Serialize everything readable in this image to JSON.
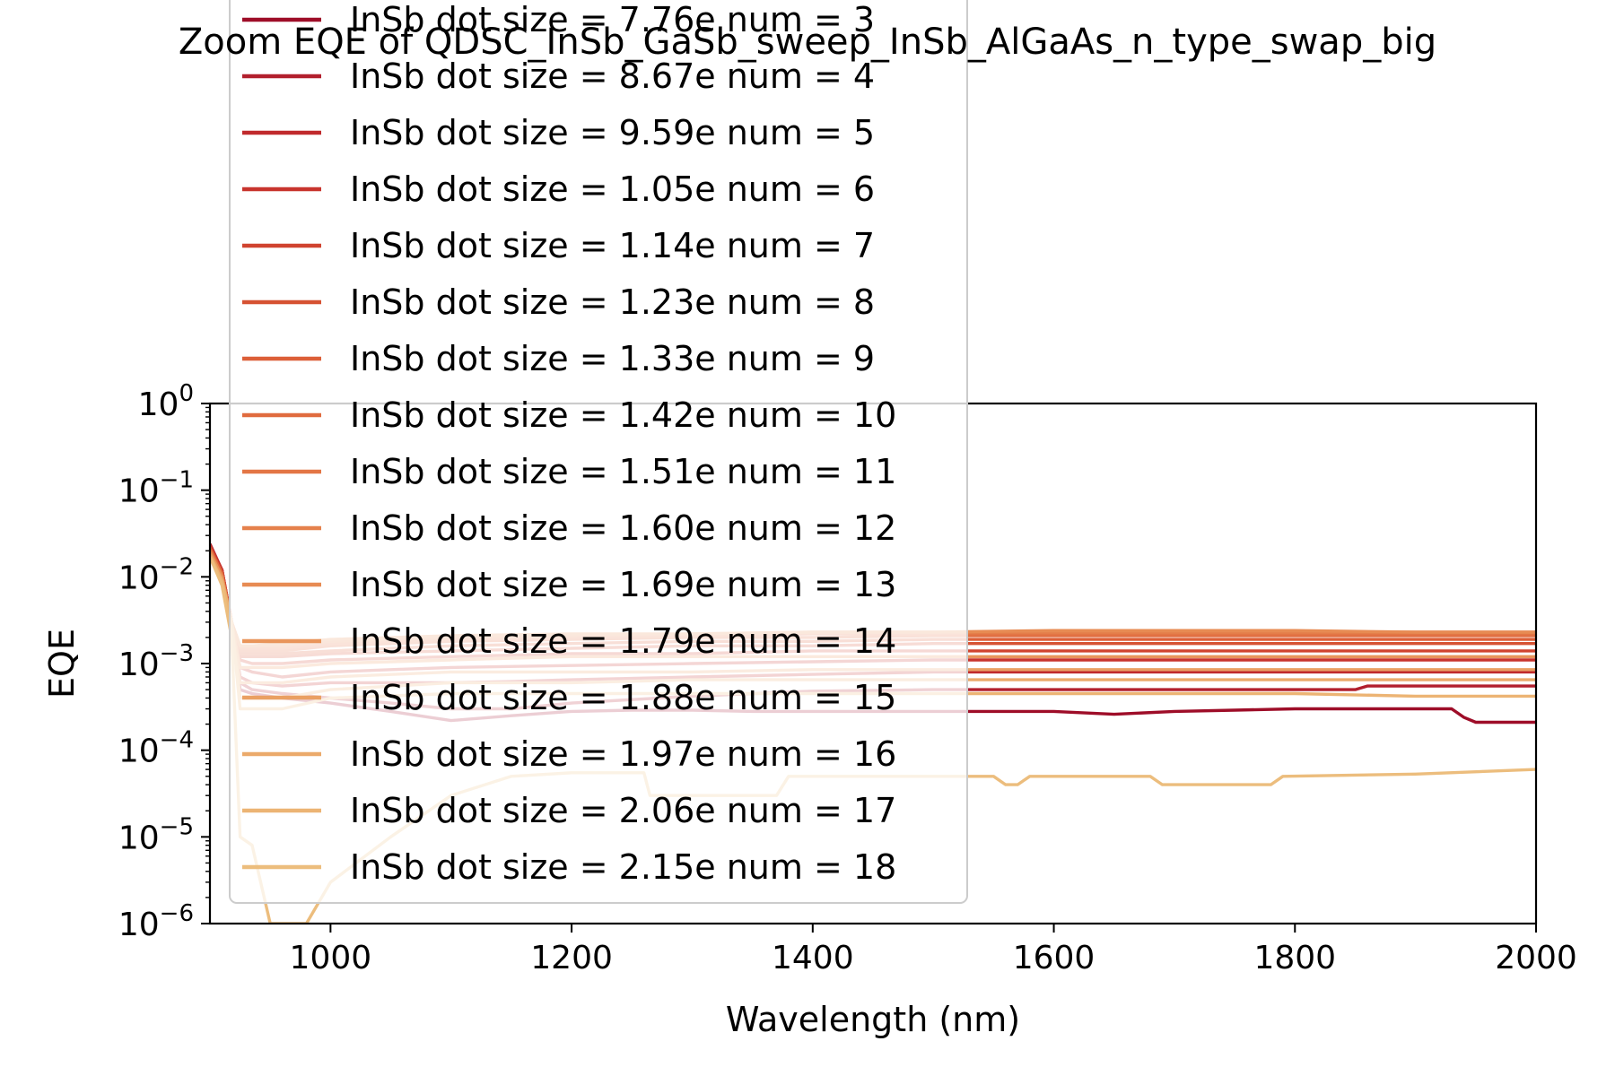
{
  "chart_data": {
    "type": "line",
    "title": "Zoom EQE of QDSC_InSb_GaSb_sweep_InSb_AlGaAs_n_type_swap_big",
    "xlabel": "Wavelength (nm)",
    "ylabel": "EQE",
    "xlim": [
      900,
      2000
    ],
    "ylim": [
      1e-06,
      1
    ],
    "yscale": "log",
    "legend_position": "upper-left",
    "x_ticks": [
      {
        "value": 1000,
        "label": "1000"
      },
      {
        "value": 1200,
        "label": "1200"
      },
      {
        "value": 1400,
        "label": "1400"
      },
      {
        "value": 1600,
        "label": "1600"
      },
      {
        "value": 1800,
        "label": "1800"
      },
      {
        "value": 2000,
        "label": "2000"
      }
    ],
    "y_ticks": [
      {
        "value": 1,
        "base": "10",
        "exp": "0"
      },
      {
        "value": 0.1,
        "base": "10",
        "exp": "−1"
      },
      {
        "value": 0.01,
        "base": "10",
        "exp": "−2"
      },
      {
        "value": 0.001,
        "base": "10",
        "exp": "−3"
      },
      {
        "value": 0.0001,
        "base": "10",
        "exp": "−4"
      },
      {
        "value": 1e-05,
        "base": "10",
        "exp": "−5"
      },
      {
        "value": 1e-06,
        "base": "10",
        "exp": "−6"
      }
    ],
    "series": [
      {
        "name": "InSb dot size = 7.76e num = 3",
        "color": "#9e0d28",
        "x": [
          900,
          910,
          918,
          925,
          935,
          960,
          1000,
          1050,
          1100,
          1150,
          1200,
          1250,
          1300,
          1350,
          1400,
          1450,
          1500,
          1550,
          1600,
          1650,
          1700,
          1750,
          1800,
          1850,
          1900,
          1930,
          1940,
          1950,
          1960,
          2000
        ],
        "y": [
          0.022,
          0.012,
          0.003,
          0.0005,
          0.00045,
          0.0004,
          0.00035,
          0.00028,
          0.00022,
          0.00025,
          0.00028,
          0.00029,
          0.00029,
          0.00028,
          0.00028,
          0.00028,
          0.00028,
          0.00028,
          0.00028,
          0.00026,
          0.00028,
          0.00029,
          0.0003,
          0.0003,
          0.0003,
          0.0003,
          0.00024,
          0.00021,
          0.00021,
          0.00021
        ]
      },
      {
        "name": "InSb dot size = 8.67e num = 4",
        "color": "#b21f2d",
        "x": [
          900,
          910,
          918,
          925,
          935,
          960,
          1000,
          1050,
          1100,
          1150,
          1200,
          1300,
          1400,
          1500,
          1600,
          1700,
          1800,
          1850,
          1860,
          1950,
          2000
        ],
        "y": [
          0.024,
          0.012,
          0.003,
          0.0006,
          0.0005,
          0.00045,
          0.0004,
          0.00035,
          0.0003,
          0.0003,
          0.00035,
          0.00042,
          0.00048,
          0.0005,
          0.0005,
          0.0005,
          0.0005,
          0.0005,
          0.00055,
          0.00055,
          0.00055
        ]
      },
      {
        "name": "InSb dot size = 9.59e num = 5",
        "color": "#c02a2c",
        "x": [
          900,
          910,
          918,
          925,
          935,
          960,
          1000,
          1050,
          1100,
          1150,
          1200,
          1300,
          1400,
          1500,
          1600,
          1700,
          1800,
          1900,
          2000
        ],
        "y": [
          0.023,
          0.012,
          0.003,
          0.0007,
          0.0006,
          0.00055,
          0.0006,
          0.0006,
          0.0006,
          0.00062,
          0.00065,
          0.0007,
          0.00075,
          0.0008,
          0.0008,
          0.0008,
          0.0008,
          0.0008,
          0.0008
        ]
      },
      {
        "name": "InSb dot size = 1.05e num = 6",
        "color": "#c8342d",
        "x": [
          900,
          910,
          918,
          925,
          935,
          960,
          1000,
          1050,
          1100,
          1200,
          1300,
          1400,
          1500,
          1600,
          1700,
          1800,
          1900,
          2000
        ],
        "y": [
          0.023,
          0.012,
          0.003,
          0.0009,
          0.0008,
          0.0007,
          0.0008,
          0.00085,
          0.0009,
          0.00095,
          0.001,
          0.00105,
          0.0011,
          0.0011,
          0.0011,
          0.0011,
          0.0011,
          0.0011
        ]
      },
      {
        "name": "InSb dot size = 1.14e num = 7",
        "color": "#d0432f",
        "x": [
          900,
          910,
          918,
          925,
          935,
          960,
          1000,
          1100,
          1200,
          1300,
          1400,
          1500,
          1600,
          1700,
          1800,
          1900,
          2000
        ],
        "y": [
          0.022,
          0.011,
          0.003,
          0.0011,
          0.001,
          0.001,
          0.0011,
          0.0012,
          0.0013,
          0.0013,
          0.0014,
          0.0014,
          0.0014,
          0.0014,
          0.0014,
          0.0014,
          0.0014
        ]
      },
      {
        "name": "InSb dot size = 1.23e num = 8",
        "color": "#d65233",
        "x": [
          900,
          910,
          918,
          925,
          935,
          960,
          1000,
          1100,
          1200,
          1300,
          1400,
          1500,
          1600,
          1700,
          1800,
          1900,
          2000
        ],
        "y": [
          0.022,
          0.011,
          0.003,
          0.0012,
          0.0012,
          0.0012,
          0.0013,
          0.0014,
          0.0015,
          0.0016,
          0.0016,
          0.0017,
          0.0017,
          0.0017,
          0.0017,
          0.0017,
          0.0017
        ]
      },
      {
        "name": "InSb dot size = 1.33e num = 9",
        "color": "#dc5f38",
        "x": [
          900,
          910,
          918,
          925,
          935,
          960,
          1000,
          1100,
          1200,
          1300,
          1400,
          1500,
          1600,
          1700,
          1800,
          1900,
          2000
        ],
        "y": [
          0.021,
          0.011,
          0.003,
          0.0013,
          0.0013,
          0.0013,
          0.0014,
          0.0016,
          0.0017,
          0.0018,
          0.0018,
          0.0019,
          0.0019,
          0.0019,
          0.0019,
          0.0019,
          0.0019
        ]
      },
      {
        "name": "InSb dot size = 1.42e num = 10",
        "color": "#e06b3e",
        "x": [
          900,
          910,
          918,
          925,
          935,
          960,
          1000,
          1100,
          1200,
          1300,
          1400,
          1500,
          1600,
          1700,
          1800,
          1900,
          2000
        ],
        "y": [
          0.021,
          0.011,
          0.003,
          0.0014,
          0.0014,
          0.0014,
          0.0016,
          0.0018,
          0.0019,
          0.002,
          0.002,
          0.0021,
          0.0021,
          0.0021,
          0.0021,
          0.0021,
          0.0021
        ]
      },
      {
        "name": "InSb dot size = 1.51e num = 11",
        "color": "#e37645",
        "x": [
          900,
          910,
          918,
          925,
          935,
          960,
          1000,
          1100,
          1200,
          1300,
          1400,
          1500,
          1600,
          1700,
          1800,
          1900,
          2000
        ],
        "y": [
          0.02,
          0.01,
          0.003,
          0.0015,
          0.0015,
          0.0015,
          0.0017,
          0.0019,
          0.002,
          0.0021,
          0.0022,
          0.0022,
          0.0022,
          0.0022,
          0.0022,
          0.0022,
          0.0022
        ]
      },
      {
        "name": "InSb dot size = 1.60e num = 12",
        "color": "#e5814c",
        "x": [
          900,
          910,
          918,
          925,
          935,
          960,
          1000,
          1100,
          1200,
          1300,
          1400,
          1500,
          1600,
          1700,
          1800,
          1900,
          2000
        ],
        "y": [
          0.02,
          0.01,
          0.003,
          0.0016,
          0.0016,
          0.0016,
          0.0018,
          0.002,
          0.0021,
          0.0022,
          0.0023,
          0.0023,
          0.0023,
          0.0023,
          0.0023,
          0.0023,
          0.0023
        ]
      },
      {
        "name": "InSb dot size = 1.69e num = 13",
        "color": "#e78b53",
        "x": [
          900,
          910,
          918,
          925,
          935,
          960,
          1000,
          1100,
          1200,
          1300,
          1400,
          1500,
          1600,
          1700,
          1800,
          1900,
          2000
        ],
        "y": [
          0.019,
          0.01,
          0.003,
          0.0016,
          0.0016,
          0.0017,
          0.0019,
          0.0021,
          0.0022,
          0.0022,
          0.0023,
          0.0023,
          0.0024,
          0.0024,
          0.0024,
          0.0023,
          0.0023
        ]
      },
      {
        "name": "InSb dot size = 1.79e num = 14",
        "color": "#e9955b",
        "x": [
          900,
          910,
          918,
          925,
          935,
          960,
          1000,
          1100,
          1200,
          1300,
          1400,
          1500,
          1600,
          1700,
          1800,
          1900,
          2000
        ],
        "y": [
          0.019,
          0.01,
          0.003,
          0.0009,
          0.0009,
          0.0009,
          0.001,
          0.0011,
          0.0012,
          0.0012,
          0.0012,
          0.0012,
          0.0012,
          0.0012,
          0.0012,
          0.0012,
          0.0012
        ]
      },
      {
        "name": "InSb dot size = 1.88e num = 15",
        "color": "#eaa063",
        "x": [
          900,
          910,
          918,
          925,
          935,
          960,
          1000,
          1100,
          1200,
          1300,
          1400,
          1500,
          1600,
          1700,
          1800,
          1900,
          2000
        ],
        "y": [
          0.018,
          0.009,
          0.003,
          0.0006,
          0.0006,
          0.0006,
          0.0007,
          0.0008,
          0.0008,
          0.0008,
          0.00085,
          0.00085,
          0.00085,
          0.00085,
          0.00085,
          0.00085,
          0.00085
        ]
      },
      {
        "name": "InSb dot size = 1.97e num = 16",
        "color": "#ebaa6b",
        "x": [
          900,
          910,
          918,
          925,
          935,
          960,
          1000,
          1100,
          1200,
          1300,
          1400,
          1500,
          1600,
          1700,
          1800,
          1900,
          2000
        ],
        "y": [
          0.018,
          0.009,
          0.003,
          0.0004,
          0.0004,
          0.0004,
          0.0005,
          0.0006,
          0.0006,
          0.00065,
          0.00065,
          0.00065,
          0.00065,
          0.00065,
          0.00065,
          0.00065,
          0.00065
        ]
      },
      {
        "name": "InSb dot size = 2.06e num = 17",
        "color": "#ecb474",
        "x": [
          900,
          910,
          918,
          925,
          935,
          960,
          1000,
          1100,
          1200,
          1300,
          1400,
          1500,
          1600,
          1700,
          1800,
          1900,
          2000
        ],
        "y": [
          0.017,
          0.009,
          0.003,
          0.0003,
          0.0003,
          0.0003,
          0.0004,
          0.00045,
          0.00045,
          0.00045,
          0.00045,
          0.00045,
          0.00045,
          0.00045,
          0.00045,
          0.00042,
          0.00042
        ]
      },
      {
        "name": "InSb dot size = 2.15e num = 18",
        "color": "#ecbd7d",
        "x": [
          900,
          910,
          918,
          925,
          935,
          950,
          980,
          1000,
          1050,
          1100,
          1150,
          1200,
          1260,
          1265,
          1300,
          1350,
          1370,
          1380,
          1500,
          1550,
          1560,
          1570,
          1580,
          1680,
          1690,
          1750,
          1780,
          1790,
          1900,
          2000
        ],
        "y": [
          0.017,
          0.008,
          0.002,
          1e-05,
          8e-06,
          1e-06,
          1e-06,
          3e-06,
          1e-05,
          3e-05,
          5e-05,
          5.5e-05,
          5.5e-05,
          3e-05,
          3e-05,
          3e-05,
          3e-05,
          5e-05,
          5e-05,
          5e-05,
          4e-05,
          4e-05,
          5e-05,
          5e-05,
          4e-05,
          4e-05,
          4e-05,
          5e-05,
          5.3e-05,
          6e-05
        ]
      }
    ]
  }
}
